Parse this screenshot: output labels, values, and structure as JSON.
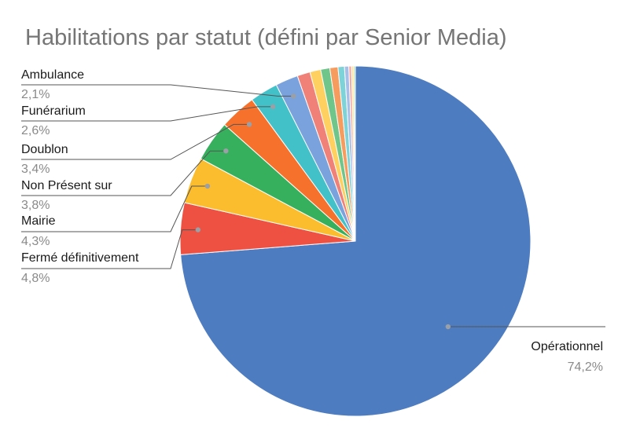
{
  "chart_data": {
    "type": "pie",
    "title": "Habilitations par statut (défini par Senior Media)",
    "start_angle_deg": 0,
    "direction": "clockwise",
    "slices": [
      {
        "label": "Opérationnel",
        "value": 74.2,
        "display": "74,2%",
        "color": "#4e7cc0",
        "labeled": true
      },
      {
        "label": "Fermé définitivement",
        "value": 4.8,
        "display": "4,8%",
        "color": "#ee5041",
        "labeled": true
      },
      {
        "label": "Mairie",
        "value": 4.3,
        "display": "4,3%",
        "color": "#fbbd2e",
        "labeled": true
      },
      {
        "label": "Non Présent sur",
        "value": 3.8,
        "display": "3,8%",
        "color": "#37b05e",
        "labeled": true
      },
      {
        "label": "Doublon",
        "value": 3.4,
        "display": "3,4%",
        "color": "#f6722c",
        "labeled": true
      },
      {
        "label": "Funérarium",
        "value": 2.6,
        "display": "2,6%",
        "color": "#42c1c8",
        "labeled": true
      },
      {
        "label": "Ambulance",
        "value": 2.1,
        "display": "2,1%",
        "color": "#7aa2dc",
        "labeled": true
      },
      {
        "label": "",
        "value": 1.2,
        "display": "",
        "color": "#f08178",
        "labeled": false
      },
      {
        "label": "",
        "value": 1.0,
        "display": "",
        "color": "#fdd060",
        "labeled": false
      },
      {
        "label": "",
        "value": 0.85,
        "display": "",
        "color": "#6fc58a",
        "labeled": false
      },
      {
        "label": "",
        "value": 0.75,
        "display": "",
        "color": "#f79c5f",
        "labeled": false
      },
      {
        "label": "",
        "value": 0.6,
        "display": "",
        "color": "#7dd3d8",
        "labeled": false
      },
      {
        "label": "",
        "value": 0.4,
        "display": "",
        "color": "#a6bfe8",
        "labeled": false
      },
      {
        "label": "",
        "value": 0.25,
        "display": "",
        "color": "#f3a9a2",
        "labeled": false
      },
      {
        "label": "",
        "value": 0.2,
        "display": "",
        "color": "#fde39a",
        "labeled": false
      },
      {
        "label": "",
        "value": 0.15,
        "display": "",
        "color": "#a3dab4",
        "labeled": false
      }
    ],
    "legend": "none"
  }
}
